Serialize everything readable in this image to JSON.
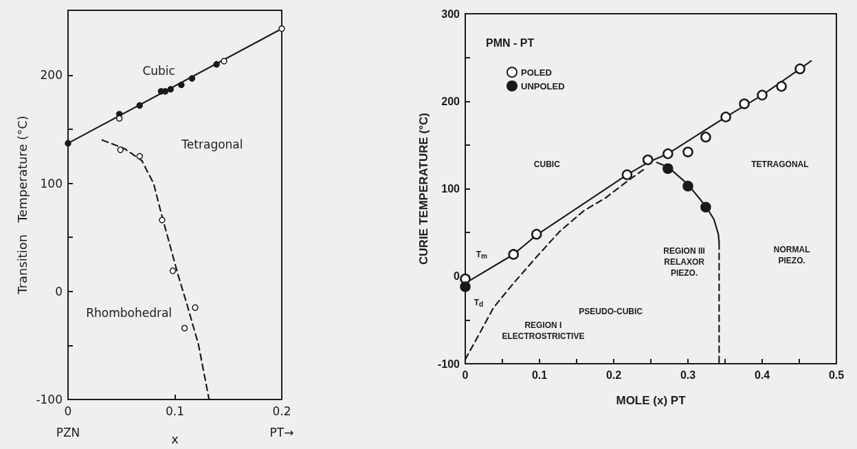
{
  "chart_data": [
    {
      "type": "line",
      "xlabel": "x",
      "ylabel": "Transition   Temperature (°C)",
      "xlim": [
        0,
        0.2
      ],
      "ylim": [
        -100,
        260
      ],
      "xticks": [
        0,
        0.1,
        0.2
      ],
      "yticks": [
        -100,
        {
          "value": -50,
          "label": null
        },
        0,
        {
          "value": 50,
          "label": null
        },
        100,
        {
          "value": 150,
          "label": null
        },
        200
      ],
      "grid": false,
      "series": [
        {
          "type": "line",
          "x": [
            0,
            0.2
          ],
          "values": [
            137,
            243
          ],
          "color": "#1a1a1a",
          "line_style": "solid",
          "marker": "none"
        },
        {
          "type": "line",
          "x": [
            0.032,
            0.053,
            0.069,
            0.08,
            0.087,
            0.095,
            0.103,
            0.111,
            0.122,
            0.132
          ],
          "values": [
            140,
            132,
            121,
            100,
            73,
            44,
            15,
            -11,
            -49,
            -100
          ],
          "color": "#1a1a1a",
          "line_style": "dashed",
          "marker": "none"
        },
        {
          "type": "scatter",
          "x": [
            0,
            0.048,
            0.067,
            0.087,
            0.091,
            0.096,
            0.106,
            0.116,
            0.139
          ],
          "values": [
            137,
            164,
            172,
            185,
            185,
            187,
            191,
            197,
            210
          ],
          "color": "#1a1a1a",
          "marker": "circle"
        },
        {
          "type": "scatter",
          "x": [
            0.048,
            0.146,
            0.2,
            0.049,
            0.067,
            0.088,
            0.098,
            0.119,
            0.109
          ],
          "values": [
            160,
            213,
            243,
            131,
            125,
            66,
            19,
            -15,
            -34
          ],
          "color": "#ffffff",
          "marker": "circle"
        }
      ],
      "annotations": [
        "PZN",
        "PT→",
        "Cubic",
        "Tetragonal",
        "Rhombohedral"
      ]
    },
    {
      "type": "line",
      "xlabel": "MOLE (x) PT",
      "ylabel": "CURIE TEMPERATURE (°C)",
      "xlim": [
        0,
        0.5
      ],
      "ylim": [
        -100,
        300
      ],
      "xticks": [
        0,
        {
          "value": 0.05,
          "label": null
        },
        0.1,
        {
          "value": 0.15,
          "label": null
        },
        0.2,
        {
          "value": 0.25,
          "label": null
        },
        0.3,
        {
          "value": 0.35,
          "label": null
        },
        0.4,
        {
          "value": 0.45,
          "label": null
        },
        0.5
      ],
      "yticks": [
        -100,
        {
          "value": -50,
          "label": null
        },
        0,
        {
          "value": 50,
          "label": null
        },
        100,
        {
          "value": 150,
          "label": null
        },
        200,
        {
          "value": 250,
          "label": null
        },
        300
      ],
      "grid": false,
      "legend": "top left",
      "legend_title": "PMN - PT",
      "series": [
        {
          "type": "line",
          "x": [
            0,
            0.065,
            0.096,
            0.218,
            0.246,
            0.273,
            0.351,
            0.4,
            0.451,
            0.466
          ],
          "values": [
            -8,
            25,
            47,
            116,
            130,
            140,
            182,
            207,
            237,
            246
          ],
          "color": "#1a1a1a",
          "line_style": "solid",
          "marker": "none"
        },
        {
          "type": "line",
          "x": [
            0,
            0.015,
            0.038,
            0.065,
            0.096,
            0.127,
            0.16,
            0.188,
            0.219,
            0.242
          ],
          "values": [
            -95,
            -72,
            -36,
            -8,
            22,
            51,
            75,
            89,
            109,
            123
          ],
          "color": "#1a1a1a",
          "line_style": "dashed",
          "marker": "none"
        },
        {
          "type": "line",
          "x": [
            0.258,
            0.273,
            0.3,
            0.324,
            0.335,
            0.341,
            0.342
          ],
          "values": [
            130,
            125,
            105,
            80,
            65,
            48,
            38
          ],
          "color": "#1a1a1a",
          "line_style": "solid",
          "marker": "none"
        },
        {
          "type": "line",
          "x": [
            0.342,
            0.342
          ],
          "values": [
            38,
            -100
          ],
          "color": "#1a1a1a",
          "line_style": "dashed",
          "marker": "none"
        },
        {
          "type": "scatter",
          "name": "POLED",
          "x": [
            0,
            0.065,
            0.096,
            0.218,
            0.246,
            0.273,
            0.3,
            0.324,
            0.351,
            0.376,
            0.4,
            0.426,
            0.451
          ],
          "values": [
            -3,
            25,
            48,
            116,
            133,
            140,
            142,
            159,
            182,
            197,
            207,
            217,
            237
          ],
          "color": "#ffffff",
          "marker": "circle"
        },
        {
          "type": "scatter",
          "name": "UNPOLED",
          "x": [
            0,
            0.273,
            0.3,
            0.324
          ],
          "values": [
            -12,
            123,
            103,
            79
          ],
          "color": "#1a1a1a",
          "marker": "circle"
        }
      ],
      "annotations": [
        "CUBIC",
        "TETRAGONAL",
        "REGION III\nRELAXOR\nPIEZO.",
        "NORMAL\nPIEZO.",
        "PSEUDO-CUBIC",
        "REGION I\nELECTROSTRICTIVE",
        "T$_{m}$",
        "T$_{d}$"
      ]
    }
  ]
}
